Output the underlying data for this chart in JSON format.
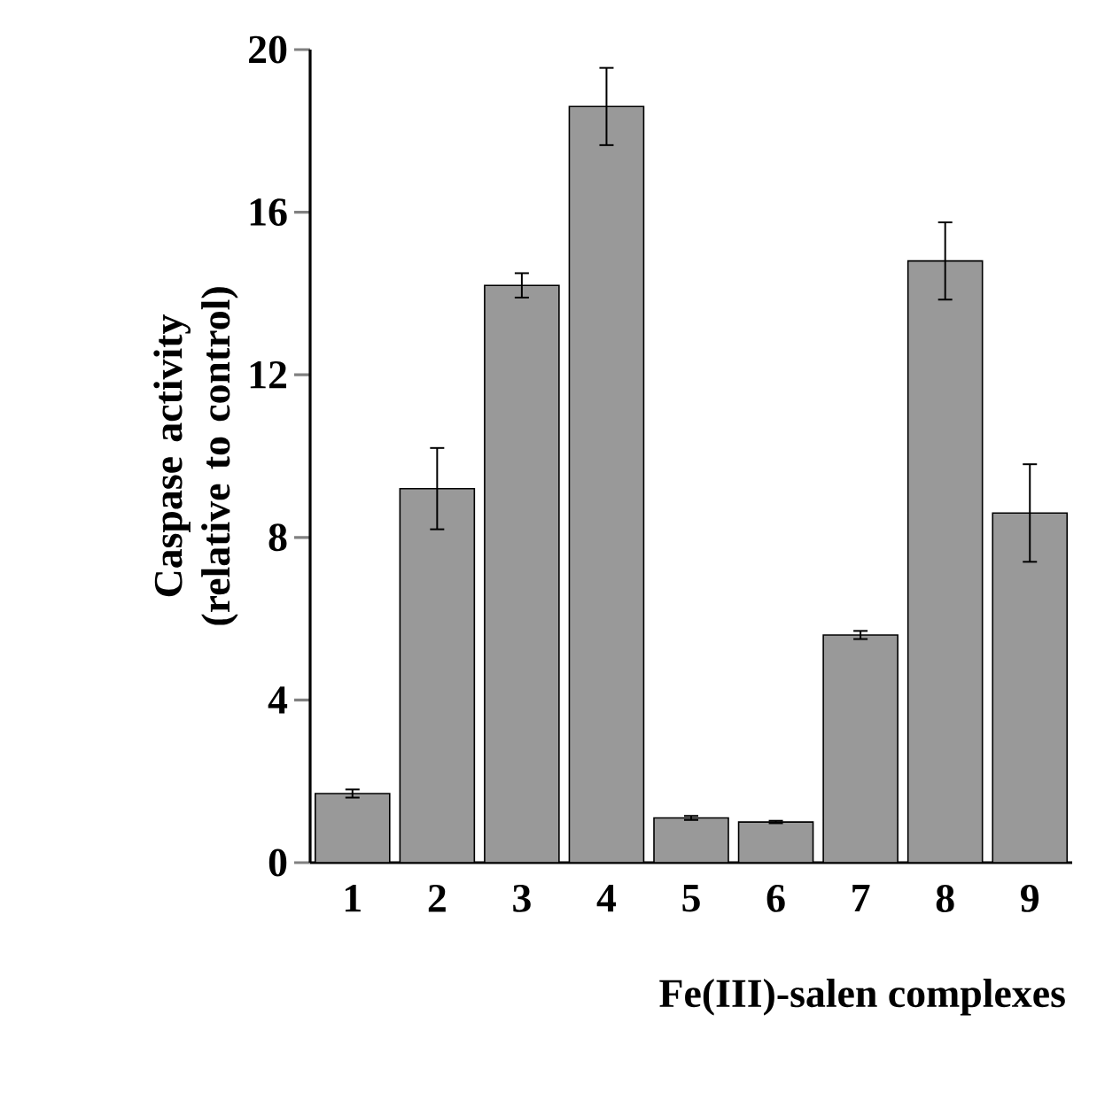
{
  "chart_data": {
    "type": "bar",
    "xlabel": "Fe(III)-salen  complexes",
    "ylabel": "Caspase activity (relative to control)",
    "categories": [
      "1",
      "2",
      "3",
      "4",
      "5",
      "6",
      "7",
      "8",
      "9"
    ],
    "values": [
      1.7,
      9.2,
      14.2,
      18.6,
      1.1,
      1.0,
      5.6,
      14.8,
      8.6
    ],
    "errors": [
      0.1,
      1.0,
      0.3,
      0.95,
      0.05,
      0.03,
      0.1,
      0.95,
      1.2
    ],
    "color": "#999999",
    "ylim": [
      0,
      20
    ],
    "yticks": [
      0,
      4,
      8,
      12,
      16,
      20
    ],
    "grid": false
  }
}
